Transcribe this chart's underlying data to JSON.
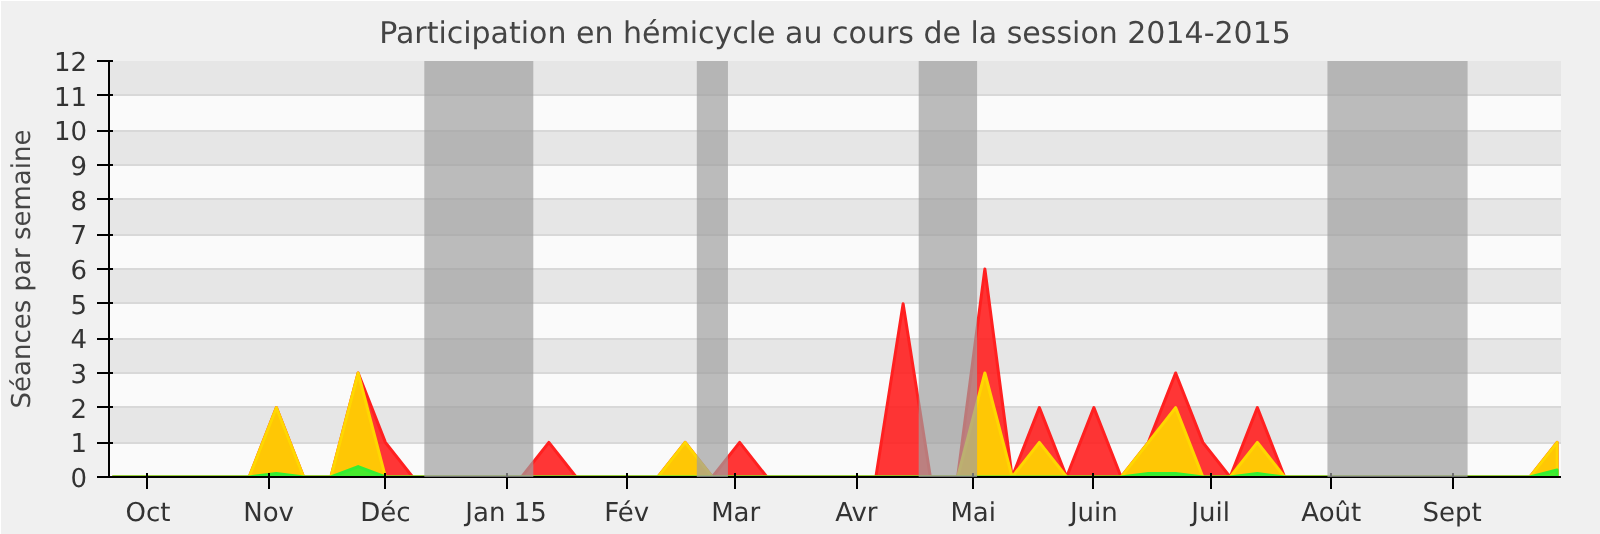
{
  "chart_data": {
    "type": "area",
    "title": "Participation en hémicycle au cours de la session 2014-2015",
    "ylabel": "Séances par semaine",
    "x": [
      "2014-09-22",
      "2014-09-29",
      "2014-10-06",
      "2014-10-13",
      "2014-10-20",
      "2014-10-27",
      "2014-11-03",
      "2014-11-10",
      "2014-11-17",
      "2014-11-24",
      "2014-12-01",
      "2014-12-08",
      "2014-12-15",
      "2014-12-22",
      "2014-12-29",
      "2015-01-05",
      "2015-01-12",
      "2015-01-19",
      "2015-01-26",
      "2015-02-02",
      "2015-02-09",
      "2015-02-16",
      "2015-02-23",
      "2015-03-02",
      "2015-03-09",
      "2015-03-16",
      "2015-03-23",
      "2015-03-30",
      "2015-04-06",
      "2015-04-13",
      "2015-04-20",
      "2015-04-27",
      "2015-05-04",
      "2015-05-11",
      "2015-05-18",
      "2015-05-25",
      "2015-06-01",
      "2015-06-08",
      "2015-06-15",
      "2015-06-22",
      "2015-06-29",
      "2015-07-06",
      "2015-07-13",
      "2015-07-20",
      "2015-07-27",
      "2015-08-03",
      "2015-08-10",
      "2015-08-17",
      "2015-08-24",
      "2015-08-31",
      "2015-09-07",
      "2015-09-14",
      "2015-09-21",
      "2015-09-28"
    ],
    "series": [
      {
        "color": "#ff2020",
        "values": [
          0,
          0,
          0,
          0,
          0,
          0,
          2,
          0,
          0,
          3,
          1,
          0,
          0,
          0,
          0,
          0,
          1,
          0,
          0,
          0,
          0,
          1,
          0,
          1,
          0,
          0,
          0,
          0,
          0,
          5,
          0,
          0,
          6,
          0,
          2,
          0,
          2,
          0,
          1,
          3,
          1,
          0,
          2,
          0,
          0,
          0,
          0,
          0,
          0,
          0,
          0,
          0,
          0,
          1
        ]
      },
      {
        "color": "#ffd700",
        "values": [
          0,
          0,
          0,
          0,
          0,
          0,
          2,
          0,
          0,
          3,
          0,
          0,
          0,
          0,
          0,
          0,
          0,
          0,
          0,
          0,
          0,
          1,
          0,
          0,
          0,
          0,
          0,
          0,
          0,
          0,
          0,
          0,
          3,
          0,
          1,
          0,
          0,
          0,
          1,
          2,
          0,
          0,
          1,
          0,
          0,
          0,
          0,
          0,
          0,
          0,
          0,
          0,
          0,
          1
        ]
      },
      {
        "color": "#33ee33",
        "values": [
          0,
          0,
          0,
          0,
          0,
          0,
          0.1,
          0,
          0,
          0.3,
          0,
          0,
          0,
          0,
          0,
          0,
          0,
          0,
          0,
          0,
          0,
          0,
          0,
          0,
          0,
          0,
          0,
          0,
          0,
          0,
          0,
          0,
          0,
          0,
          0,
          0,
          0,
          0,
          0.1,
          0.1,
          0,
          0,
          0.1,
          0,
          0,
          0,
          0,
          0,
          0,
          0,
          0,
          0,
          0,
          0.2
        ]
      }
    ],
    "xlim": [
      "2014-09-21",
      "2015-09-29"
    ],
    "ylim": [
      0,
      12
    ],
    "yticks": [
      0,
      1,
      2,
      3,
      4,
      5,
      6,
      7,
      8,
      9,
      10,
      11,
      12
    ],
    "xticks": [
      {
        "value": "2014-10-01",
        "label": "Oct"
      },
      {
        "value": "2014-11-01",
        "label": "Nov"
      },
      {
        "value": "2014-12-01",
        "label": "Déc"
      },
      {
        "value": "2015-01-01",
        "label": "Jan 15"
      },
      {
        "value": "2015-02-01",
        "label": "Fév"
      },
      {
        "value": "2015-03-01",
        "label": "Mar"
      },
      {
        "value": "2015-04-01",
        "label": "Avr"
      },
      {
        "value": "2015-05-01",
        "label": "Mai"
      },
      {
        "value": "2015-06-01",
        "label": "Juin"
      },
      {
        "value": "2015-07-01",
        "label": "Juil"
      },
      {
        "value": "2015-08-01",
        "label": "Août"
      },
      {
        "value": "2015-09-01",
        "label": "Sept"
      }
    ],
    "bands": [
      {
        "axis": "x",
        "from": "2014-12-11",
        "to": "2015-01-08",
        "color": "#a0a0a0"
      },
      {
        "axis": "x",
        "from": "2015-02-19",
        "to": "2015-02-27",
        "color": "#a0a0a0"
      },
      {
        "axis": "x",
        "from": "2015-04-17",
        "to": "2015-05-02",
        "color": "#a0a0a0"
      },
      {
        "axis": "x",
        "from": "2015-07-31",
        "to": "2015-09-05",
        "color": "#a0a0a0"
      }
    ],
    "grid": "y"
  }
}
